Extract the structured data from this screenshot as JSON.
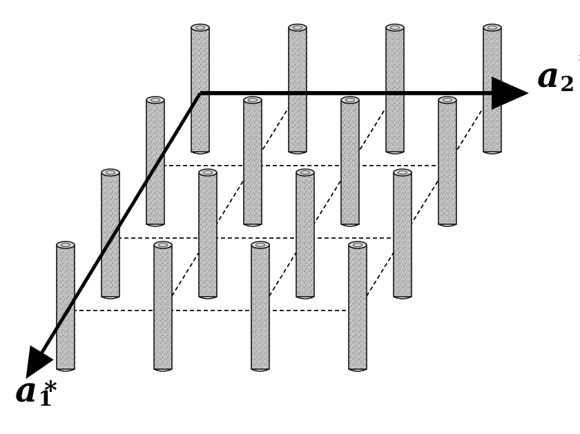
{
  "diagram": {
    "axis_a2": {
      "letter": "a",
      "subscript": "2",
      "star": "*"
    },
    "axis_a1": {
      "letter": "a",
      "subscript": "1",
      "star": "*"
    }
  },
  "colors": {
    "ink": "#000000",
    "rod_fill": "#bdbdbd",
    "rod_speckle": "#6e6e6e",
    "background": "#ffffff"
  }
}
